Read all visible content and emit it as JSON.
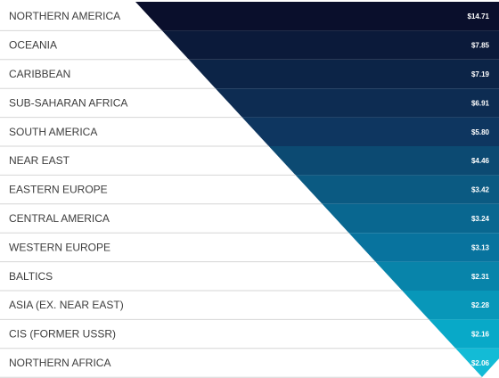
{
  "chart_data": {
    "type": "bar",
    "orientation": "horizontal",
    "style": "inverted-triangle funnel",
    "title": "",
    "xlabel": "",
    "ylabel": "",
    "categories": [
      "NORTHERN AMERICA",
      "OCEANIA",
      "CARIBBEAN",
      "SUB-SAHARAN AFRICA",
      "SOUTH AMERICA",
      "NEAR EAST",
      "EASTERN EUROPE",
      "CENTRAL AMERICA",
      "WESTERN EUROPE",
      "BALTICS",
      "ASIA (EX. NEAR EAST)",
      "CIS (FORMER USSR)",
      "NORTHERN AFRICA"
    ],
    "values": [
      14.71,
      7.85,
      7.19,
      6.91,
      5.8,
      4.46,
      3.42,
      3.24,
      3.13,
      2.31,
      2.28,
      2.16,
      2.06
    ],
    "value_labels": [
      "$14.71",
      "$7.85",
      "$7.19",
      "$6.91",
      "$5.80",
      "$4.46",
      "$3.42",
      "$3.24",
      "$3.13",
      "$2.31",
      "$2.28",
      "$2.16",
      "$2.06"
    ],
    "colors": [
      "#0a0f2c",
      "#0b1a3a",
      "#0c2447",
      "#0d2c52",
      "#0e3660",
      "#0c4a72",
      "#0b5a82",
      "#096790",
      "#08739e",
      "#0884aa",
      "#0897b9",
      "#08a9c8",
      "#13bbd6"
    ],
    "grid": true,
    "legend": "none"
  }
}
